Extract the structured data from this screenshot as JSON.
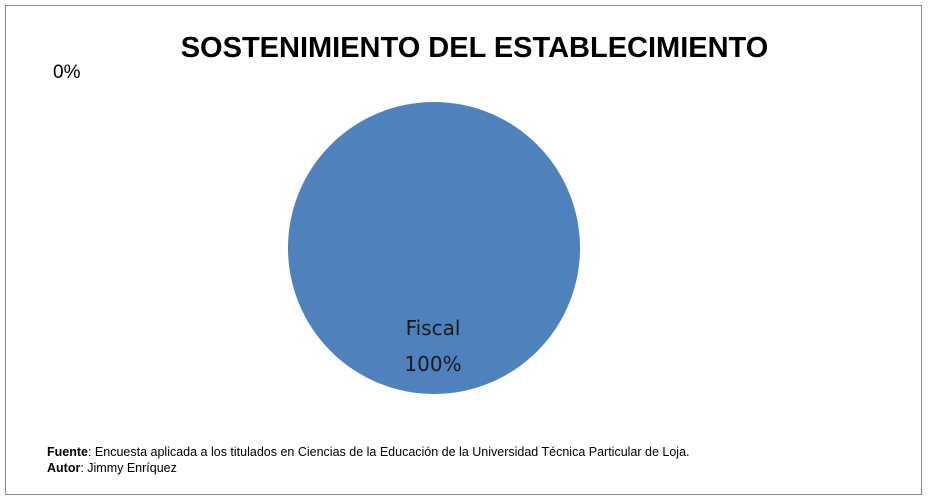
{
  "chart_data": {
    "type": "pie",
    "title": "SOSTENIMIENTO DEL ESTABLECIMIENTO",
    "slices": [
      {
        "label": "Fiscal",
        "value": 100,
        "display": "100%"
      },
      {
        "label": "",
        "value": 0,
        "display": "0%"
      }
    ],
    "colors": [
      "#4f81bd"
    ]
  },
  "footer": {
    "source_label": "Fuente",
    "source_text": ": Encuesta aplicada a los titulados en Ciencias de la Educación  de la Universidad Técnica Particular de Loja.",
    "author_label": "Autor",
    "author_text": ": Jimmy Enríquez"
  }
}
